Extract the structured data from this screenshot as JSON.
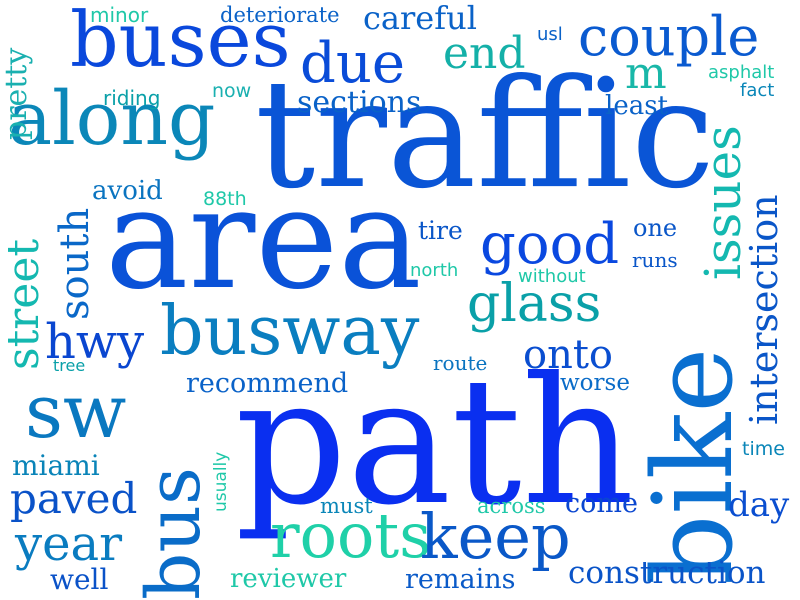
{
  "words": {
    "traffic": {
      "text": "traffic",
      "color": "#0a55d6"
    },
    "area": {
      "text": "area",
      "color": "#0a52d8"
    },
    "path": {
      "text": "path",
      "color": "#0a2ff0"
    },
    "bike": {
      "text": "bike",
      "color": "#0a6fd0"
    },
    "buses": {
      "text": "buses",
      "color": "#0a48dc"
    },
    "along": {
      "text": "along",
      "color": "#0b87b8"
    },
    "busway": {
      "text": "busway",
      "color": "#0a7ec0"
    },
    "bus": {
      "text": "bus",
      "color": "#0a6cc8"
    },
    "roots": {
      "text": "roots",
      "color": "#1fd0a8"
    },
    "keep": {
      "text": "keep",
      "color": "#0a58c8"
    },
    "sw": {
      "text": "sw",
      "color": "#0a78c0"
    },
    "good": {
      "text": "good",
      "color": "#0a48e0"
    },
    "glass": {
      "text": "glass",
      "color": "#0aa0a8"
    },
    "couple": {
      "text": "couple",
      "color": "#0a5ad0"
    },
    "due": {
      "text": "due",
      "color": "#0a4cd8"
    },
    "issues": {
      "text": "issues",
      "color": "#14b8b0"
    },
    "intersection": {
      "text": "intersection",
      "color": "#0a56c8"
    },
    "street": {
      "text": "street",
      "color": "#14b8b0"
    },
    "south": {
      "text": "south",
      "color": "#0a68c8"
    },
    "hwy": {
      "text": "hwy",
      "color": "#0a46d0"
    },
    "paved": {
      "text": "paved",
      "color": "#0a52c8"
    },
    "year": {
      "text": "year",
      "color": "#0a7cc0"
    },
    "end": {
      "text": "end",
      "color": "#14b0a8"
    },
    "m": {
      "text": "m",
      "color": "#19b7a8"
    },
    "onto": {
      "text": "onto",
      "color": "#0a4ed0"
    },
    "sections": {
      "text": "sections",
      "color": "#0a62c8"
    },
    "recommend": {
      "text": "recommend",
      "color": "#0a62c8"
    },
    "construction": {
      "text": "construction",
      "color": "#0a54c8"
    },
    "careful": {
      "text": "careful",
      "color": "#0a62c8"
    },
    "pretty": {
      "text": "pretty",
      "color": "#1ab0b0"
    },
    "miami": {
      "text": "miami",
      "color": "#0a84b8"
    },
    "well": {
      "text": "well",
      "color": "#0a52c8"
    },
    "reviewer": {
      "text": "reviewer",
      "color": "#1fc8a8"
    },
    "remains": {
      "text": "remains",
      "color": "#0a5ac8"
    },
    "come": {
      "text": "come",
      "color": "#0a46d0"
    },
    "day": {
      "text": "day",
      "color": "#0a4ed0"
    },
    "worse": {
      "text": "worse",
      "color": "#0a6cc8"
    },
    "avoid": {
      "text": "avoid",
      "color": "#0a74c0"
    },
    "least": {
      "text": "least",
      "color": "#0a62c8"
    },
    "tire": {
      "text": "tire",
      "color": "#0a56c8"
    },
    "one": {
      "text": "one",
      "color": "#0a56c8"
    },
    "runs": {
      "text": "runs",
      "color": "#0a56c8"
    },
    "route": {
      "text": "route",
      "color": "#0a74c0"
    },
    "must": {
      "text": "must",
      "color": "#0a86b8"
    },
    "across": {
      "text": "across",
      "color": "#1fc8a8"
    },
    "deteriorate": {
      "text": "deteriorate",
      "color": "#0a62c8"
    },
    "minor": {
      "text": "minor",
      "color": "#1fc8a8"
    },
    "usl": {
      "text": "usl",
      "color": "#0a62c8"
    },
    "asphalt": {
      "text": "asphalt",
      "color": "#1fc8a8"
    },
    "fact": {
      "text": "fact",
      "color": "#0a86b8"
    },
    "riding": {
      "text": "riding",
      "color": "#0aa0a8"
    },
    "now": {
      "text": "now",
      "color": "#1ab0b0"
    },
    "88th": {
      "text": "88th",
      "color": "#1fc8a8"
    },
    "north": {
      "text": "north",
      "color": "#1fc8a8"
    },
    "without": {
      "text": "without",
      "color": "#1fc8a8"
    },
    "tree": {
      "text": "tree",
      "color": "#0aa0a8"
    },
    "usually": {
      "text": "usually",
      "color": "#1fc8a8"
    },
    "time": {
      "text": "time",
      "color": "#0a86b8"
    }
  }
}
